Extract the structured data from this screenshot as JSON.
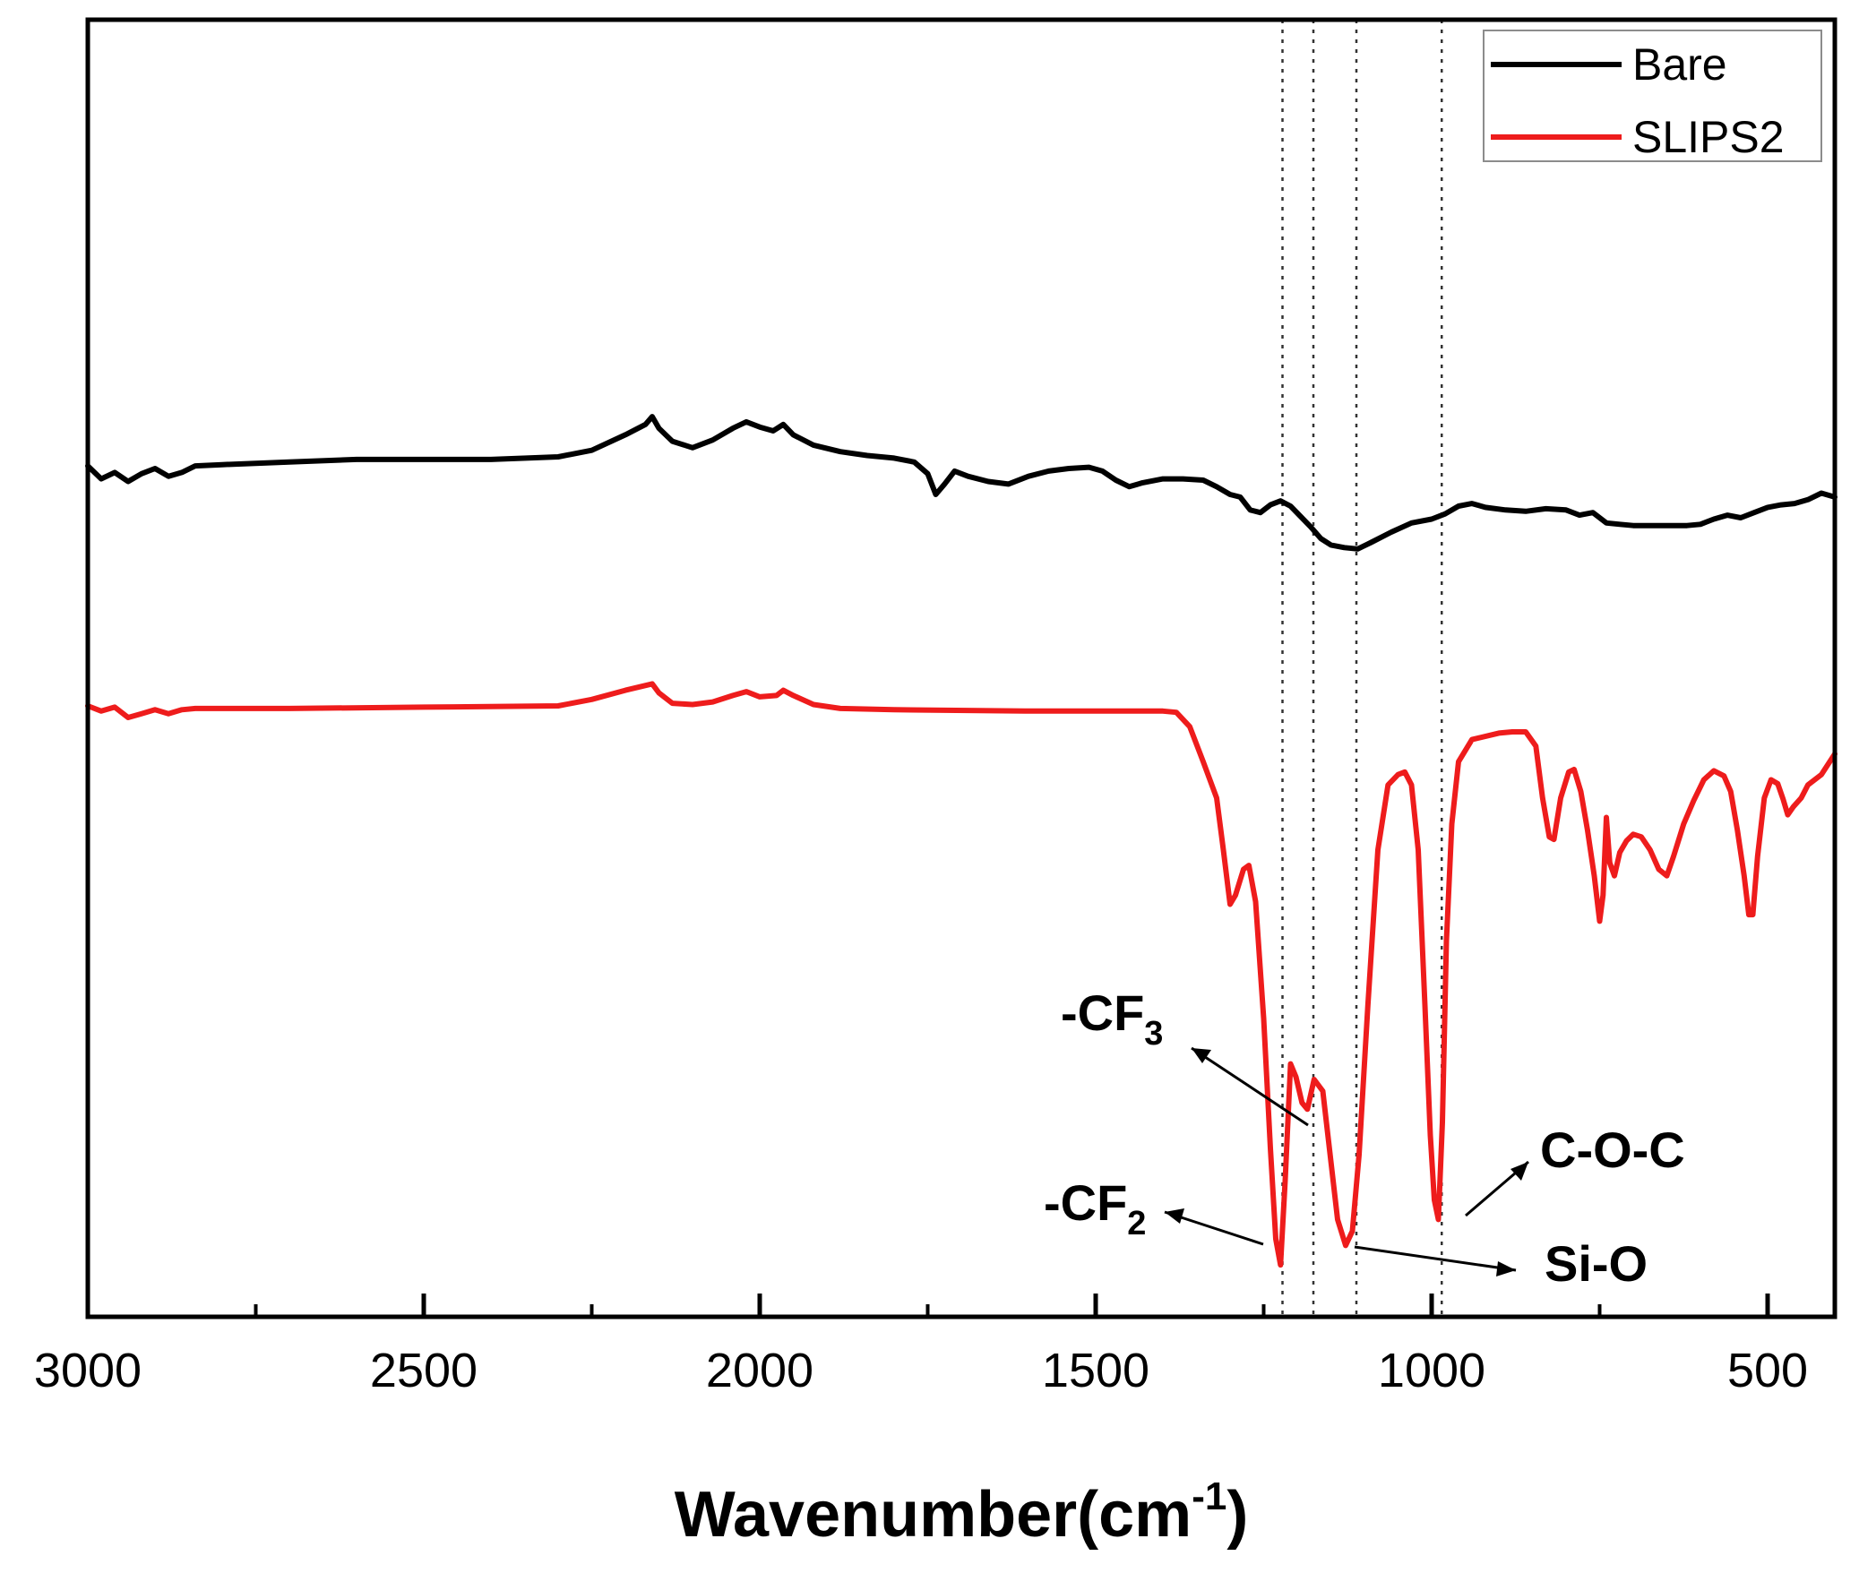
{
  "chart_data": {
    "type": "line",
    "title": "",
    "xlabel": "Wavenumber(cm",
    "xlabel_sup": "-1",
    "xlabel_close": ")",
    "ylabel": "",
    "xlim": [
      3000,
      400
    ],
    "ylim": [
      0,
      1
    ],
    "x_ticks": [
      {
        "value": 3000,
        "label": "3000"
      },
      {
        "value": 2500,
        "label": "2500"
      },
      {
        "value": 2000,
        "label": "2000"
      },
      {
        "value": 1500,
        "label": "1500"
      },
      {
        "value": 1000,
        "label": "1000"
      },
      {
        "value": 500,
        "label": "500"
      }
    ],
    "minor_ticks": [
      2750,
      2250,
      1750,
      1250,
      750
    ],
    "legend_position": "top-right",
    "series": [
      {
        "name": "Bare",
        "color": "#000000",
        "points": [
          [
            3000,
            0.656
          ],
          [
            2980,
            0.646
          ],
          [
            2960,
            0.651
          ],
          [
            2940,
            0.644
          ],
          [
            2920,
            0.65
          ],
          [
            2900,
            0.654
          ],
          [
            2880,
            0.648
          ],
          [
            2860,
            0.651
          ],
          [
            2840,
            0.656
          ],
          [
            2800,
            0.657
          ],
          [
            2700,
            0.659
          ],
          [
            2600,
            0.661
          ],
          [
            2500,
            0.661
          ],
          [
            2400,
            0.661
          ],
          [
            2300,
            0.663
          ],
          [
            2250,
            0.668
          ],
          [
            2200,
            0.68
          ],
          [
            2170,
            0.688
          ],
          [
            2160,
            0.694
          ],
          [
            2150,
            0.685
          ],
          [
            2130,
            0.675
          ],
          [
            2100,
            0.67
          ],
          [
            2070,
            0.676
          ],
          [
            2040,
            0.685
          ],
          [
            2020,
            0.69
          ],
          [
            2000,
            0.686
          ],
          [
            1980,
            0.683
          ],
          [
            1965,
            0.688
          ],
          [
            1950,
            0.68
          ],
          [
            1920,
            0.672
          ],
          [
            1880,
            0.667
          ],
          [
            1840,
            0.664
          ],
          [
            1800,
            0.662
          ],
          [
            1770,
            0.659
          ],
          [
            1750,
            0.65
          ],
          [
            1738,
            0.634
          ],
          [
            1725,
            0.642
          ],
          [
            1710,
            0.652
          ],
          [
            1690,
            0.648
          ],
          [
            1660,
            0.644
          ],
          [
            1630,
            0.642
          ],
          [
            1600,
            0.648
          ],
          [
            1570,
            0.652
          ],
          [
            1540,
            0.654
          ],
          [
            1510,
            0.655
          ],
          [
            1490,
            0.652
          ],
          [
            1470,
            0.645
          ],
          [
            1450,
            0.64
          ],
          [
            1430,
            0.643
          ],
          [
            1400,
            0.646
          ],
          [
            1370,
            0.646
          ],
          [
            1340,
            0.645
          ],
          [
            1320,
            0.64
          ],
          [
            1300,
            0.634
          ],
          [
            1285,
            0.632
          ],
          [
            1270,
            0.622
          ],
          [
            1255,
            0.62
          ],
          [
            1240,
            0.626
          ],
          [
            1225,
            0.629
          ],
          [
            1210,
            0.625
          ],
          [
            1195,
            0.617
          ],
          [
            1180,
            0.609
          ],
          [
            1165,
            0.6
          ],
          [
            1150,
            0.595
          ],
          [
            1130,
            0.593
          ],
          [
            1110,
            0.592
          ],
          [
            1090,
            0.597
          ],
          [
            1060,
            0.605
          ],
          [
            1030,
            0.612
          ],
          [
            1000,
            0.615
          ],
          [
            980,
            0.619
          ],
          [
            960,
            0.625
          ],
          [
            940,
            0.627
          ],
          [
            920,
            0.624
          ],
          [
            890,
            0.622
          ],
          [
            860,
            0.621
          ],
          [
            830,
            0.623
          ],
          [
            800,
            0.622
          ],
          [
            780,
            0.618
          ],
          [
            760,
            0.62
          ],
          [
            740,
            0.612
          ],
          [
            720,
            0.611
          ],
          [
            700,
            0.61
          ],
          [
            680,
            0.61
          ],
          [
            650,
            0.61
          ],
          [
            620,
            0.61
          ],
          [
            600,
            0.611
          ],
          [
            580,
            0.615
          ],
          [
            560,
            0.618
          ],
          [
            540,
            0.616
          ],
          [
            520,
            0.62
          ],
          [
            500,
            0.624
          ],
          [
            480,
            0.626
          ],
          [
            460,
            0.627
          ],
          [
            440,
            0.63
          ],
          [
            420,
            0.635
          ],
          [
            400,
            0.632
          ]
        ]
      },
      {
        "name": "SLIPS2",
        "color": "#ee1c1c",
        "points": [
          [
            3000,
            0.471
          ],
          [
            2980,
            0.467
          ],
          [
            2960,
            0.47
          ],
          [
            2940,
            0.462
          ],
          [
            2920,
            0.465
          ],
          [
            2900,
            0.468
          ],
          [
            2880,
            0.465
          ],
          [
            2860,
            0.468
          ],
          [
            2840,
            0.469
          ],
          [
            2700,
            0.469
          ],
          [
            2500,
            0.47
          ],
          [
            2300,
            0.471
          ],
          [
            2250,
            0.476
          ],
          [
            2200,
            0.483
          ],
          [
            2160,
            0.488
          ],
          [
            2150,
            0.481
          ],
          [
            2130,
            0.473
          ],
          [
            2100,
            0.472
          ],
          [
            2070,
            0.474
          ],
          [
            2040,
            0.479
          ],
          [
            2020,
            0.482
          ],
          [
            2000,
            0.478
          ],
          [
            1975,
            0.479
          ],
          [
            1965,
            0.483
          ],
          [
            1950,
            0.479
          ],
          [
            1920,
            0.472
          ],
          [
            1880,
            0.469
          ],
          [
            1800,
            0.468
          ],
          [
            1600,
            0.467
          ],
          [
            1500,
            0.467
          ],
          [
            1400,
            0.467
          ],
          [
            1380,
            0.466
          ],
          [
            1360,
            0.455
          ],
          [
            1340,
            0.428
          ],
          [
            1320,
            0.4
          ],
          [
            1310,
            0.36
          ],
          [
            1300,
            0.318
          ],
          [
            1292,
            0.325
          ],
          [
            1280,
            0.345
          ],
          [
            1272,
            0.348
          ],
          [
            1262,
            0.32
          ],
          [
            1250,
            0.23
          ],
          [
            1240,
            0.13
          ],
          [
            1232,
            0.06
          ],
          [
            1225,
            0.04
          ],
          [
            1218,
            0.105
          ],
          [
            1210,
            0.195
          ],
          [
            1202,
            0.185
          ],
          [
            1193,
            0.165
          ],
          [
            1185,
            0.16
          ],
          [
            1175,
            0.183
          ],
          [
            1162,
            0.174
          ],
          [
            1150,
            0.12
          ],
          [
            1140,
            0.075
          ],
          [
            1128,
            0.055
          ],
          [
            1118,
            0.066
          ],
          [
            1108,
            0.125
          ],
          [
            1095,
            0.24
          ],
          [
            1080,
            0.36
          ],
          [
            1065,
            0.41
          ],
          [
            1050,
            0.418
          ],
          [
            1040,
            0.42
          ],
          [
            1030,
            0.41
          ],
          [
            1020,
            0.36
          ],
          [
            1010,
            0.24
          ],
          [
            1002,
            0.14
          ],
          [
            996,
            0.09
          ],
          [
            990,
            0.075
          ],
          [
            984,
            0.15
          ],
          [
            978,
            0.29
          ],
          [
            970,
            0.38
          ],
          [
            960,
            0.428
          ],
          [
            940,
            0.445
          ],
          [
            900,
            0.45
          ],
          [
            880,
            0.451
          ],
          [
            860,
            0.451
          ],
          [
            845,
            0.44
          ],
          [
            835,
            0.4
          ],
          [
            825,
            0.37
          ],
          [
            818,
            0.368
          ],
          [
            808,
            0.4
          ],
          [
            796,
            0.42
          ],
          [
            788,
            0.422
          ],
          [
            778,
            0.405
          ],
          [
            768,
            0.375
          ],
          [
            758,
            0.34
          ],
          [
            750,
            0.305
          ],
          [
            745,
            0.325
          ],
          [
            740,
            0.385
          ],
          [
            735,
            0.35
          ],
          [
            728,
            0.34
          ],
          [
            720,
            0.358
          ],
          [
            710,
            0.367
          ],
          [
            700,
            0.372
          ],
          [
            688,
            0.37
          ],
          [
            675,
            0.36
          ],
          [
            662,
            0.345
          ],
          [
            650,
            0.34
          ],
          [
            640,
            0.355
          ],
          [
            625,
            0.38
          ],
          [
            610,
            0.398
          ],
          [
            595,
            0.414
          ],
          [
            580,
            0.421
          ],
          [
            565,
            0.417
          ],
          [
            555,
            0.405
          ],
          [
            545,
            0.375
          ],
          [
            535,
            0.34
          ],
          [
            528,
            0.31
          ],
          [
            522,
            0.31
          ],
          [
            515,
            0.355
          ],
          [
            505,
            0.4
          ],
          [
            495,
            0.414
          ],
          [
            485,
            0.411
          ],
          [
            477,
            0.399
          ],
          [
            470,
            0.387
          ],
          [
            462,
            0.393
          ],
          [
            450,
            0.4
          ],
          [
            440,
            0.41
          ],
          [
            420,
            0.418
          ],
          [
            400,
            0.434
          ]
        ]
      }
    ],
    "vlines": [
      1222,
      1176,
      1112,
      985
    ],
    "annotations": [
      {
        "text": "-CF",
        "sub": "3"
      },
      {
        "text": "-CF",
        "sub": "2"
      },
      {
        "text": "C-O-C",
        "sub": ""
      },
      {
        "text": "Si-O",
        "sub": ""
      }
    ]
  }
}
